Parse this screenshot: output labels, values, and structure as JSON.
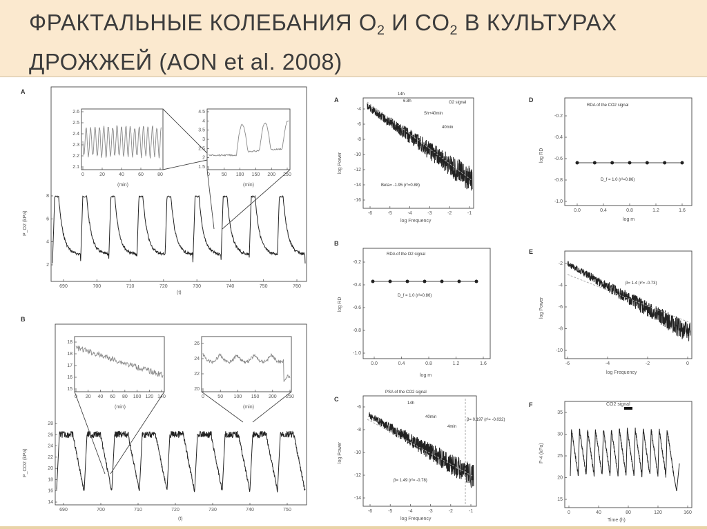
{
  "header": {
    "title_a": "ФРАКТАЛЬНЫЕ КОЛЕБАНИЯ O",
    "sub_a": "2",
    "title_b": " И CO",
    "sub_b": "2",
    "title_c": " В КУЛЬТУРАХ",
    "title_line2": "ДРОЖЖЕЙ (AON et al. 2008)"
  },
  "colors": {
    "header_bg": "#fbe9cf",
    "text": "#3c3c3c",
    "trace": "#222222"
  },
  "left": {
    "A": {
      "label": "A",
      "ylabel": "P_O2 (kPa)",
      "xlabel": "(t)",
      "xticks": [
        "690",
        "700",
        "710",
        "720",
        "730",
        "740",
        "750",
        "760"
      ],
      "yticks": [
        "2",
        "4",
        "6",
        "8"
      ],
      "inset1": {
        "xticks": [
          "0",
          "20",
          "40",
          "60",
          "80"
        ],
        "yticks": [
          "2.6",
          "2.5",
          "2.4",
          "2.3",
          "2.2",
          "2.1"
        ],
        "xlabel": "(min)"
      },
      "inset2": {
        "xticks": [
          "0",
          "50",
          "100",
          "150",
          "200",
          "250"
        ],
        "yticks": [
          "4.5",
          "4",
          "3.5",
          "3",
          "2.5",
          "2",
          "1.5"
        ],
        "xlabel": "(min)"
      }
    },
    "B": {
      "label": "B",
      "ylabel": "P_CO2 (kPa)",
      "xlabel": "(t)",
      "xticks": [
        "690",
        "700",
        "710",
        "720",
        "730",
        "740",
        "750"
      ],
      "yticks": [
        "14",
        "16",
        "18",
        "20",
        "22",
        "24",
        "26",
        "28"
      ],
      "inset1": {
        "xticks": [
          "0",
          "20",
          "40",
          "60",
          "80",
          "100",
          "120",
          "140"
        ],
        "yticks": [
          "18",
          "18",
          "17",
          "16",
          "15"
        ],
        "xlabel": "(min)"
      },
      "inset2": {
        "xticks": [
          "0",
          "50",
          "100",
          "150",
          "200",
          "250"
        ],
        "yticks": [
          "26",
          "24",
          "22",
          "20"
        ],
        "xlabel": "(min)"
      }
    }
  },
  "middle": {
    "A": {
      "label": "A",
      "title": "O2 signal",
      "ylabel": "log Power",
      "xlabel": "log Frequency",
      "xticks": [
        "-6",
        "-5",
        "-4",
        "-3",
        "-2",
        "-1"
      ],
      "yticks": [
        "-4",
        "-6",
        "-8",
        "-10",
        "-12",
        "-14",
        "-16"
      ],
      "ann": [
        "14h",
        "6.8h",
        "Sh+40min",
        "40min"
      ],
      "fit": "Beta= -1.95 (r²=0.88)"
    },
    "B": {
      "label": "B",
      "title": "RDA of the O2 signal",
      "ylabel": "log RD",
      "xlabel": "log m",
      "xticks": [
        "0.0",
        "0.4",
        "0.8",
        "1.2",
        "1.6"
      ],
      "yticks": [
        "-0.2",
        "-0.4",
        "-0.6",
        "-0.8",
        "-1.0"
      ],
      "points": [
        0.0,
        0.2,
        0.4,
        0.6,
        0.8,
        1.0,
        1.2
      ],
      "fit": "D_f = 1.0 (r²=0.86)"
    },
    "C": {
      "label": "C",
      "title": "PSA of the CO2 signal",
      "ylabel": "log Power",
      "xlabel": "log Frequency",
      "xticks": [
        "-6",
        "-5",
        "-4",
        "-3",
        "-2",
        "-1"
      ],
      "yticks": [
        "-6",
        "-8",
        "-10",
        "-12",
        "-14"
      ],
      "ann": [
        "14h",
        "40min",
        "4min"
      ],
      "fit_a": "β= 1.49 (r²= -0.78)",
      "fit_b": "β= 0.197 (r²= -0.032)"
    }
  },
  "right": {
    "D": {
      "label": "D",
      "title": "RDA of the CO2 signal",
      "ylabel": "log RD",
      "xlabel": "log m",
      "xticks": [
        "0.0",
        "0.4",
        "0.8",
        "1.2",
        "1.6"
      ],
      "yticks": [
        "-0.2",
        "-0.4",
        "-0.6",
        "-0.8",
        "-1.0"
      ],
      "points": [
        0.0,
        0.2,
        0.4,
        0.6,
        0.8,
        1.0,
        1.2
      ],
      "fit": "D_f = 1.0 (r²=0.86)"
    },
    "E": {
      "label": "E",
      "ylabel": "log Power",
      "xlabel": "log Frequency",
      "xticks": [
        "-6",
        "-4",
        "-2",
        "0"
      ],
      "yticks": [
        "-2",
        "-4",
        "-6",
        "-8",
        "-10"
      ],
      "fit": "β= 1.4 (r²= -0.73)"
    },
    "F": {
      "label": "F",
      "title": "CO2 signal",
      "ylabel": "P-4 (kPa)",
      "xlabel": "Time (h)",
      "xticks": [
        "0",
        "40",
        "80",
        "120",
        "160"
      ],
      "yticks": [
        "35",
        "30",
        "25",
        "20",
        "15"
      ]
    }
  }
}
